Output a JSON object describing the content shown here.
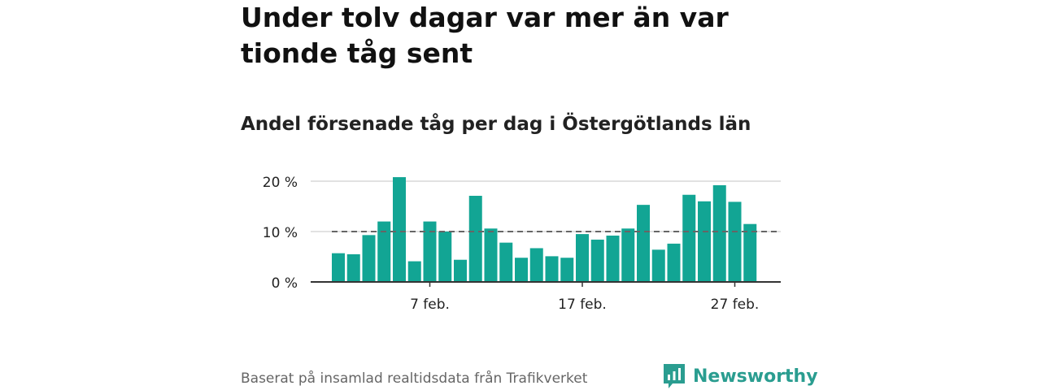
{
  "title": "Under tolv dagar var mer än var tionde tåg sent",
  "subtitle": "Andel försenade tåg per dag i Östergötlands län",
  "source": "Baserat på insamlad realtidsdata från Trafikverket",
  "brand": {
    "name": "Newsworthy",
    "icon": "newsworthy-logo-icon",
    "color": "#2a9d90"
  },
  "chart_data": {
    "type": "bar",
    "x": [
      "2023-02-01",
      "2023-02-02",
      "2023-02-03",
      "2023-02-04",
      "2023-02-05",
      "2023-02-06",
      "2023-02-07",
      "2023-02-08",
      "2023-02-09",
      "2023-02-10",
      "2023-02-11",
      "2023-02-12",
      "2023-02-13",
      "2023-02-14",
      "2023-02-15",
      "2023-02-16",
      "2023-02-17",
      "2023-02-18",
      "2023-02-19",
      "2023-02-20",
      "2023-02-21",
      "2023-02-22",
      "2023-02-23",
      "2023-02-24",
      "2023-02-25",
      "2023-02-26",
      "2023-02-27",
      "2023-02-28"
    ],
    "values": [
      5.7,
      5.5,
      9.3,
      12.0,
      20.8,
      4.1,
      12.0,
      10.0,
      4.4,
      17.1,
      10.6,
      7.8,
      4.8,
      6.7,
      5.1,
      4.8,
      9.5,
      8.4,
      9.2,
      10.6,
      15.3,
      6.4,
      7.6,
      17.3,
      16.0,
      19.2,
      15.9,
      11.5
    ],
    "ylim": [
      0,
      20
    ],
    "yticks": [
      0,
      10,
      20
    ],
    "ytick_labels": [
      "0 %",
      "10 %",
      "20 %"
    ],
    "xtick_labels": [
      {
        "date": "2023-02-07",
        "label": "7 feb."
      },
      {
        "date": "2023-02-17",
        "label": "17 feb."
      },
      {
        "date": "2023-02-27",
        "label": "27 feb."
      }
    ],
    "reference_line": {
      "value": 10,
      "style": "dashed"
    },
    "bar_color": "#12a594",
    "grid": true,
    "xlabel": "",
    "ylabel": ""
  }
}
